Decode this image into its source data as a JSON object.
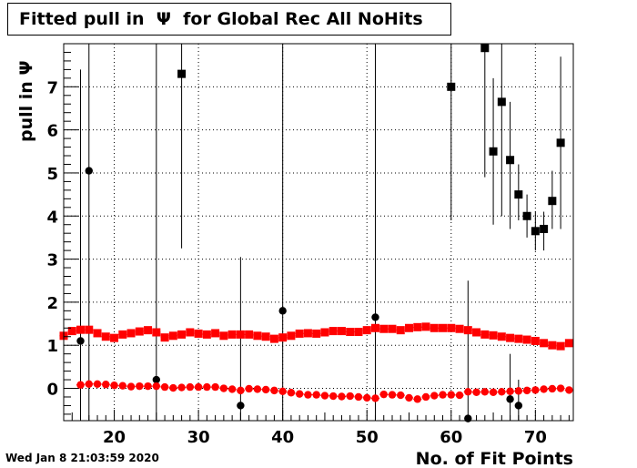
{
  "chart_data": {
    "type": "scatter",
    "title": "Fitted pull in  Ψ  for Global Rec All NoHits",
    "xlabel": "No. of Fit Points",
    "ylabel": "pull in  Ψ",
    "xlim": [
      14,
      74.5
    ],
    "ylim": [
      -0.75,
      8.0
    ],
    "x_ticks": [
      20,
      30,
      40,
      50,
      60,
      70
    ],
    "y_ticks": [
      0,
      1,
      2,
      3,
      4,
      5,
      6,
      7
    ],
    "grid": true,
    "series": [
      {
        "marker": "square-black",
        "color": "#000000",
        "points": [
          {
            "x": 28,
            "y": 7.3,
            "lo": 3.25,
            "hi": 8.0
          },
          {
            "x": 60,
            "y": 7.0,
            "lo": 3.9,
            "hi": 8.0
          },
          {
            "x": 64,
            "y": 7.9,
            "lo": 4.9,
            "hi": 8.0
          },
          {
            "x": 65,
            "y": 5.5,
            "lo": 3.8,
            "hi": 7.2
          },
          {
            "x": 66,
            "y": 6.65,
            "lo": 4.0,
            "hi": 8.0
          },
          {
            "x": 67,
            "y": 5.3,
            "lo": 3.7,
            "hi": 6.65
          },
          {
            "x": 68,
            "y": 4.5,
            "lo": 3.9,
            "hi": 5.2
          },
          {
            "x": 69,
            "y": 4.0,
            "lo": 3.5,
            "hi": 4.5
          },
          {
            "x": 70,
            "y": 3.65,
            "lo": 3.2,
            "hi": 4.1
          },
          {
            "x": 71,
            "y": 3.7,
            "lo": 3.2,
            "hi": 4.1
          },
          {
            "x": 72,
            "y": 4.35,
            "lo": 3.7,
            "hi": 5.05
          },
          {
            "x": 73,
            "y": 5.7,
            "lo": 3.7,
            "hi": 7.7
          }
        ]
      },
      {
        "marker": "circle-black",
        "color": "#000000",
        "points": [
          {
            "x": 16,
            "y": 1.1,
            "lo": -0.75,
            "hi": 7.4
          },
          {
            "x": 17,
            "y": 5.05,
            "lo": -0.75,
            "hi": 8.0
          },
          {
            "x": 25,
            "y": 0.2,
            "lo": -0.75,
            "hi": 8.0
          },
          {
            "x": 35,
            "y": -0.4,
            "lo": -0.75,
            "hi": 3.05
          },
          {
            "x": 40,
            "y": 1.8,
            "lo": -0.75,
            "hi": 8.0
          },
          {
            "x": 51,
            "y": 1.65,
            "lo": -0.75,
            "hi": 8.0
          },
          {
            "x": 62,
            "y": -0.7,
            "lo": -0.75,
            "hi": 2.5
          },
          {
            "x": 67,
            "y": -0.25,
            "lo": -0.75,
            "hi": 0.8
          },
          {
            "x": 68,
            "y": -0.4,
            "lo": -0.75,
            "hi": 0.2
          }
        ]
      },
      {
        "marker": "square-red",
        "color": "#ff0000",
        "x": [
          14,
          15,
          16,
          17,
          18,
          19,
          20,
          21,
          22,
          23,
          24,
          25,
          26,
          27,
          28,
          29,
          30,
          31,
          32,
          33,
          34,
          35,
          36,
          37,
          38,
          39,
          40,
          41,
          42,
          43,
          44,
          45,
          46,
          47,
          48,
          49,
          50,
          51,
          52,
          53,
          54,
          55,
          56,
          57,
          58,
          59,
          60,
          61,
          62,
          63,
          64,
          65,
          66,
          67,
          68,
          69,
          70,
          71,
          72,
          73,
          74
        ],
        "y": [
          1.22,
          1.33,
          1.36,
          1.36,
          1.28,
          1.2,
          1.17,
          1.25,
          1.28,
          1.32,
          1.35,
          1.3,
          1.18,
          1.22,
          1.25,
          1.3,
          1.27,
          1.25,
          1.28,
          1.22,
          1.25,
          1.25,
          1.25,
          1.22,
          1.2,
          1.15,
          1.18,
          1.22,
          1.27,
          1.28,
          1.27,
          1.3,
          1.33,
          1.33,
          1.31,
          1.31,
          1.35,
          1.4,
          1.38,
          1.38,
          1.35,
          1.4,
          1.42,
          1.43,
          1.4,
          1.4,
          1.4,
          1.38,
          1.35,
          1.3,
          1.25,
          1.23,
          1.2,
          1.17,
          1.15,
          1.13,
          1.1,
          1.05,
          1.0,
          0.98,
          1.05
        ]
      },
      {
        "marker": "circle-red",
        "color": "#ff0000",
        "x": [
          16,
          17,
          18,
          19,
          20,
          21,
          22,
          23,
          24,
          25,
          26,
          27,
          28,
          29,
          30,
          31,
          32,
          33,
          34,
          35,
          36,
          37,
          38,
          39,
          40,
          41,
          42,
          43,
          44,
          45,
          46,
          47,
          48,
          49,
          50,
          51,
          52,
          53,
          54,
          55,
          56,
          57,
          58,
          59,
          60,
          61,
          62,
          63,
          64,
          65,
          66,
          67,
          68,
          69,
          70,
          71,
          72,
          73,
          74
        ],
        "y": [
          0.08,
          0.1,
          0.1,
          0.09,
          0.07,
          0.06,
          0.04,
          0.05,
          0.05,
          0.05,
          0.03,
          0.01,
          0.02,
          0.03,
          0.03,
          0.03,
          0.03,
          0.0,
          -0.02,
          -0.05,
          -0.01,
          -0.02,
          -0.03,
          -0.05,
          -0.07,
          -0.1,
          -0.13,
          -0.15,
          -0.15,
          -0.17,
          -0.18,
          -0.19,
          -0.18,
          -0.2,
          -0.22,
          -0.23,
          -0.14,
          -0.15,
          -0.16,
          -0.22,
          -0.25,
          -0.2,
          -0.17,
          -0.15,
          -0.15,
          -0.16,
          -0.08,
          -0.09,
          -0.08,
          -0.09,
          -0.08,
          -0.07,
          -0.06,
          -0.05,
          -0.04,
          -0.02,
          -0.01,
          0.0,
          -0.04
        ]
      }
    ]
  },
  "timestamp": "Wed Jan  8 21:03:59 2020"
}
